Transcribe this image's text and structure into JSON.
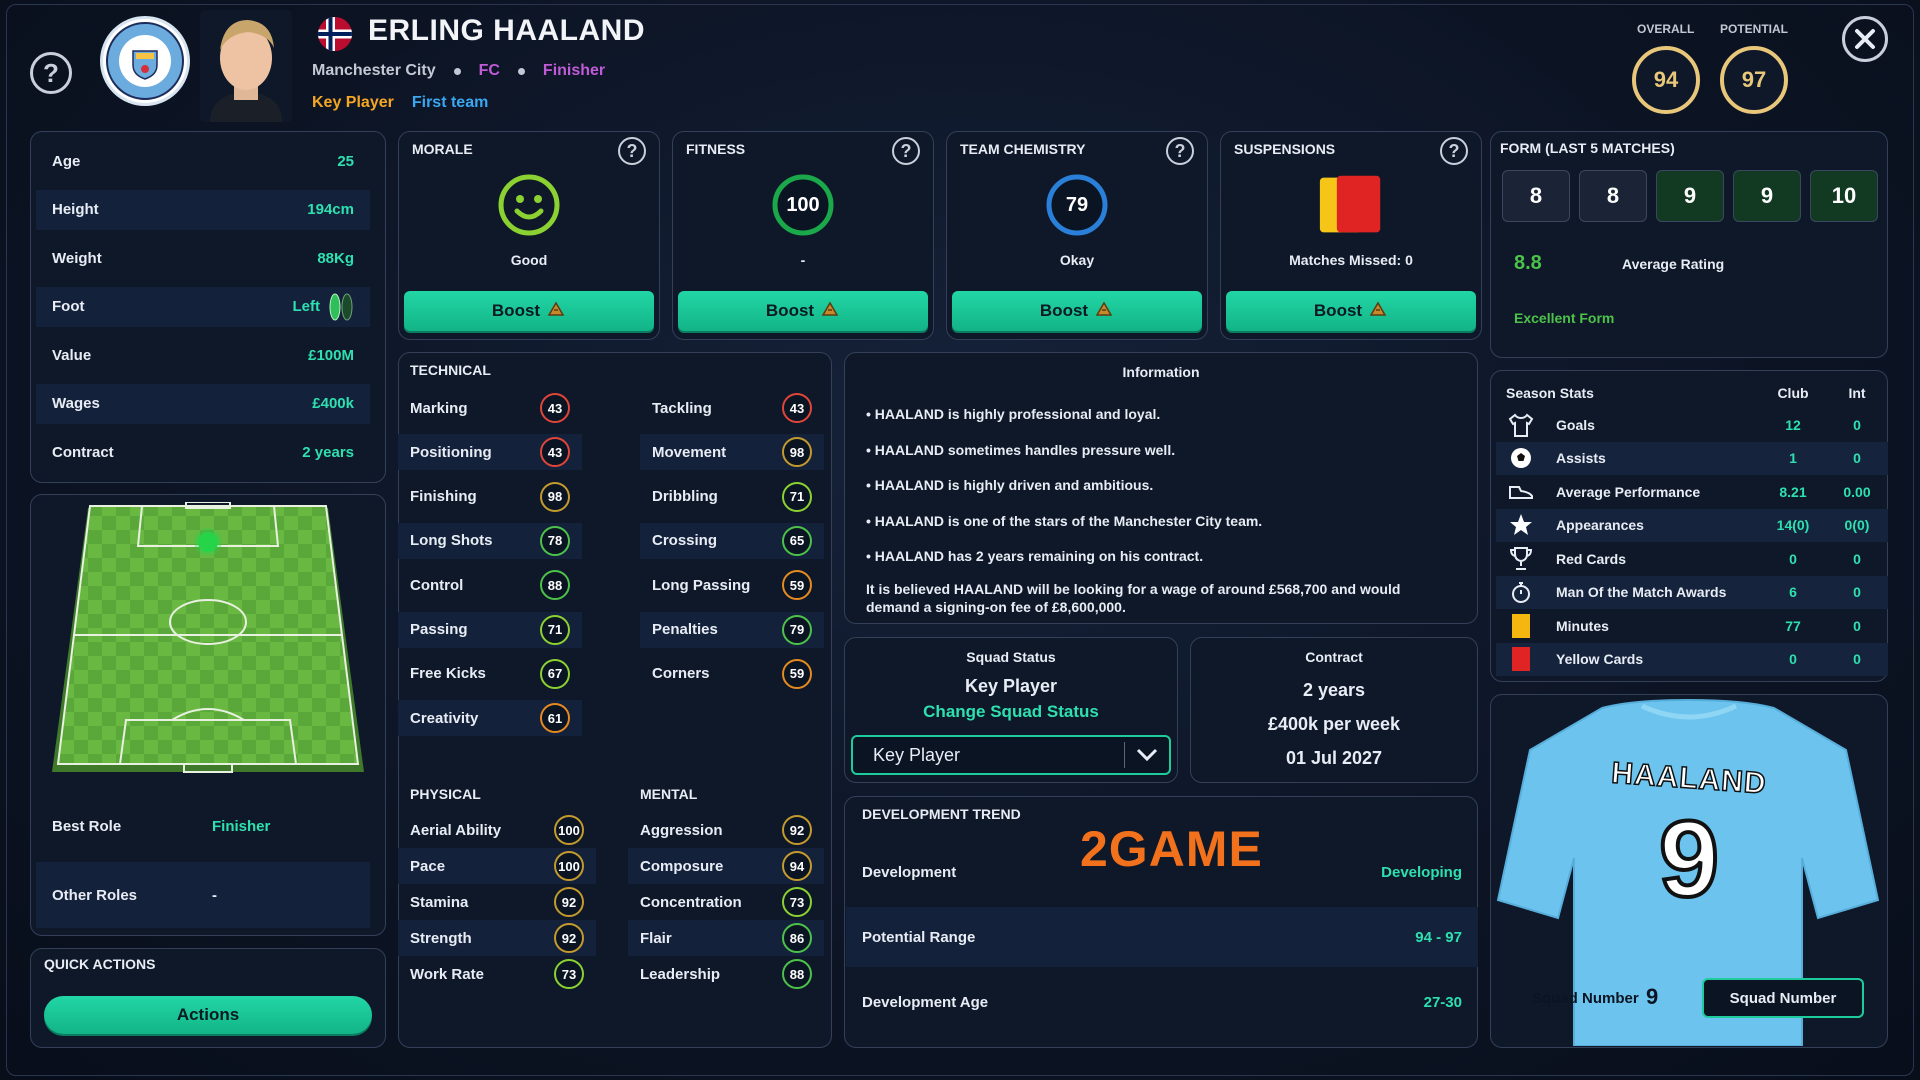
{
  "header": {
    "player_name": "ERLING HAALAND",
    "club": "Manchester City",
    "position": "FC",
    "role": "Finisher",
    "status_tag": "Key Player",
    "team_tag": "First team",
    "club_badge_text": "MANCHESTER CITY",
    "overall_label": "OVERALL",
    "overall_value": "94",
    "potential_label": "POTENTIAL",
    "potential_value": "97"
  },
  "bio": [
    {
      "label": "Age",
      "value": "25"
    },
    {
      "label": "Height",
      "value": "194cm"
    },
    {
      "label": "Weight",
      "value": "88Kg"
    },
    {
      "label": "Foot",
      "value": "Left"
    },
    {
      "label": "Value",
      "value": "£100M"
    },
    {
      "label": "Wages",
      "value": "£400k"
    },
    {
      "label": "Contract",
      "value": "2 years"
    }
  ],
  "roles": {
    "best_role_label": "Best Role",
    "best_role_value": "Finisher",
    "other_roles_label": "Other Roles",
    "other_roles_value": "-"
  },
  "quick_actions": {
    "title": "QUICK ACTIONS",
    "button": "Actions"
  },
  "status_cards": [
    {
      "title": "MORALE",
      "value_text": "Good",
      "button": "Boost"
    },
    {
      "title": "FITNESS",
      "ring_value": "100",
      "value_text": "-",
      "button": "Boost"
    },
    {
      "title": "TEAM CHEMISTRY",
      "ring_value": "79",
      "value_text": "Okay",
      "button": "Boost"
    },
    {
      "title": "SUSPENSIONS",
      "value_text": "Matches Missed: 0",
      "button": "Boost"
    }
  ],
  "technical": {
    "title": "TECHNICAL",
    "left": [
      {
        "label": "Marking",
        "value": "43",
        "color": "#e0453a"
      },
      {
        "label": "Positioning",
        "value": "43",
        "color": "#e0453a"
      },
      {
        "label": "Finishing",
        "value": "98",
        "color": "#c39a2e"
      },
      {
        "label": "Long Shots",
        "value": "78",
        "color": "#4cc24a"
      },
      {
        "label": "Control",
        "value": "88",
        "color": "#4cc24a"
      },
      {
        "label": "Passing",
        "value": "71",
        "color": "#8bd132"
      },
      {
        "label": "Free Kicks",
        "value": "67",
        "color": "#8bd132"
      },
      {
        "label": "Creativity",
        "value": "61",
        "color": "#e58a1f"
      }
    ],
    "right": [
      {
        "label": "Tackling",
        "value": "43",
        "color": "#e0453a"
      },
      {
        "label": "Movement",
        "value": "98",
        "color": "#c39a2e"
      },
      {
        "label": "Dribbling",
        "value": "71",
        "color": "#8bd132"
      },
      {
        "label": "Crossing",
        "value": "65",
        "color": "#4cc24a"
      },
      {
        "label": "Long Passing",
        "value": "59",
        "color": "#e58a1f"
      },
      {
        "label": "Penalties",
        "value": "79",
        "color": "#4cc24a"
      },
      {
        "label": "Corners",
        "value": "59",
        "color": "#e58a1f"
      }
    ]
  },
  "physical": {
    "title": "PHYSICAL",
    "items": [
      {
        "label": "Aerial Ability",
        "value": "100",
        "color": "#c39a2e"
      },
      {
        "label": "Pace",
        "value": "100",
        "color": "#c39a2e"
      },
      {
        "label": "Stamina",
        "value": "92",
        "color": "#c39a2e"
      },
      {
        "label": "Strength",
        "value": "92",
        "color": "#c39a2e"
      },
      {
        "label": "Work Rate",
        "value": "73",
        "color": "#8bd132"
      }
    ]
  },
  "mental": {
    "title": "MENTAL",
    "items": [
      {
        "label": "Aggression",
        "value": "92",
        "color": "#c39a2e"
      },
      {
        "label": "Composure",
        "value": "94",
        "color": "#c39a2e"
      },
      {
        "label": "Concentration",
        "value": "73",
        "color": "#8bd132"
      },
      {
        "label": "Flair",
        "value": "86",
        "color": "#4cc24a"
      },
      {
        "label": "Leadership",
        "value": "88",
        "color": "#4cc24a"
      }
    ]
  },
  "information": {
    "title": "Information",
    "bullets": [
      "• HAALAND is highly professional and loyal.",
      "• HAALAND sometimes handles pressure well.",
      "• HAALAND is highly driven and ambitious.",
      "• HAALAND is one of the stars of the Manchester City team.",
      "• HAALAND has 2 years remaining on his contract."
    ],
    "wage_note": "It is believed HAALAND will be looking for a wage of around £568,700 and would demand a signing-on fee of £8,600,000."
  },
  "squad_status": {
    "title": "Squad Status",
    "value": "Key Player",
    "change_link": "Change Squad Status",
    "dropdown_value": "Key Player"
  },
  "contract": {
    "title": "Contract",
    "length": "2 years",
    "wage": "£400k per week",
    "expiry": "01 Jul 2027"
  },
  "development": {
    "title": "DEVELOPMENT TREND",
    "watermark": "2GAME",
    "rows": [
      {
        "label": "Development",
        "value": "Developing"
      },
      {
        "label": "Potential Range",
        "value": "94 - 97"
      },
      {
        "label": "Development Age",
        "value": "27-30"
      }
    ]
  },
  "form": {
    "title": "FORM (LAST 5 MATCHES)",
    "ratings": [
      "8",
      "8",
      "9",
      "9",
      "10"
    ],
    "average_value": "8.8",
    "average_label": "Average Rating",
    "form_text": "Excellent Form"
  },
  "season_stats": {
    "title": "Season Stats",
    "col_club": "Club",
    "col_int": "Int",
    "rows": [
      {
        "icon": "shirt-icon",
        "label": "Goals",
        "club": "12",
        "int": "0"
      },
      {
        "icon": "football-icon",
        "label": "Assists",
        "club": "1",
        "int": "0"
      },
      {
        "icon": "boot-icon",
        "label": "Average Performance",
        "club": "8.21",
        "int": "0.00"
      },
      {
        "icon": "star-icon",
        "label": "Appearances",
        "club": "14(0)",
        "int": "0(0)"
      },
      {
        "icon": "trophy-icon",
        "label": "Red Cards",
        "club": "0",
        "int": "0"
      },
      {
        "icon": "stopwatch-icon",
        "label": "Man Of the Match Awards",
        "club": "6",
        "int": "0"
      },
      {
        "icon": "yellow-card-icon",
        "label": "Minutes",
        "club": "77",
        "int": "0"
      },
      {
        "icon": "red-card-icon",
        "label": "Yellow Cards",
        "club": "0",
        "int": "0"
      }
    ]
  },
  "jersey": {
    "name": "HAALAND",
    "number": "9",
    "squad_number_label": "Squad Number",
    "squad_number_value": "9",
    "squad_number_button": "Squad Number"
  },
  "colors": {
    "accent_teal": "#1ecb9c",
    "gold": "#e8c77a",
    "purple": "#c05bd8",
    "orange": "#f5a623",
    "blue_link": "#3aa7f0"
  }
}
